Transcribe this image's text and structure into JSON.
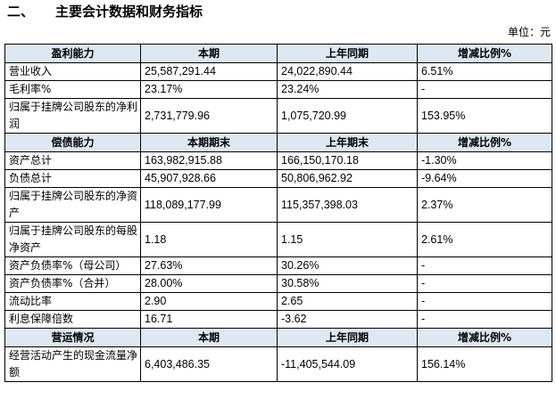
{
  "section": {
    "number": "二、",
    "title": "主要会计数据和财务指标"
  },
  "unit_label": "单位：元",
  "profitability": {
    "headers": [
      "盈利能力",
      "本期",
      "上年同期",
      "增减比例%"
    ],
    "rows": [
      [
        "营业收入",
        "25,587,291.44",
        "24,022,890.44",
        "6.51%"
      ],
      [
        "毛利率%",
        "23.17%",
        "23.24%",
        "-"
      ],
      [
        "归属于挂牌公司股东的净利润",
        "2,731,779.96",
        "1,075,720.99",
        "153.95%"
      ]
    ]
  },
  "solvency": {
    "headers": [
      "偿债能力",
      "本期期末",
      "上年期末",
      "增减比例%"
    ],
    "rows": [
      [
        "资产总计",
        "163,982,915.88",
        "166,150,170.18",
        "-1.30%"
      ],
      [
        "负债总计",
        "45,907,928.66",
        "50,806,962.92",
        "-9.64%"
      ],
      [
        "归属于挂牌公司股东的净资产",
        "118,089,177.99",
        "115,357,398.03",
        "2.37%"
      ],
      [
        "归属于挂牌公司股东的每股净资产",
        "1.18",
        "1.15",
        "2.61%"
      ],
      [
        "资产负债率%（母公司）",
        "27.63%",
        "30.26%",
        "-"
      ],
      [
        "资产负债率%（合并）",
        "28.00%",
        "30.58%",
        "-"
      ],
      [
        "流动比率",
        "2.90",
        "2.65",
        "-"
      ],
      [
        "利息保障倍数",
        "16.71",
        "-3.62",
        "-"
      ]
    ]
  },
  "operations": {
    "headers": [
      "营运情况",
      "本期",
      "上年同期",
      "增减比例%"
    ],
    "rows": [
      [
        "经营活动产生的现金流量净额",
        "6,403,486.35",
        "-11,405,544.09",
        "156.14%"
      ]
    ]
  }
}
